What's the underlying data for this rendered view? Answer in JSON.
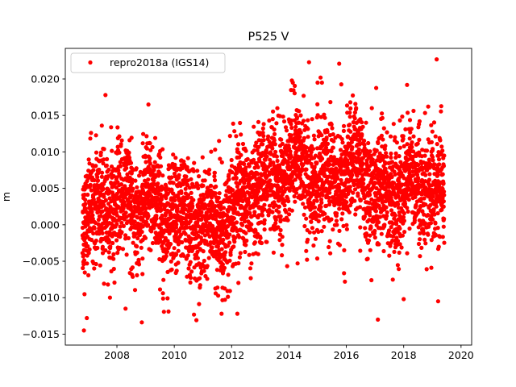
{
  "chart_data": {
    "type": "scatter",
    "title": "P525 V",
    "xlabel": "",
    "ylabel": "m",
    "xlim": [
      2006.2,
      2020.37
    ],
    "ylim": [
      -0.0165,
      0.0242
    ],
    "x_ticks": [
      2008,
      2010,
      2012,
      2014,
      2016,
      2018,
      2020
    ],
    "x_tick_labels": [
      "2008",
      "2010",
      "2012",
      "2014",
      "2016",
      "2018",
      "2020"
    ],
    "y_ticks": [
      -0.015,
      -0.01,
      -0.005,
      0.0,
      0.005,
      0.01,
      0.015,
      0.02
    ],
    "y_tick_labels": [
      "−0.015",
      "−0.010",
      "−0.005",
      "0.000",
      "0.005",
      "0.010",
      "0.015",
      "0.020"
    ],
    "grid": false,
    "legend": {
      "placement": "top-left",
      "entries": [
        "repro2018a (IGS14)"
      ]
    },
    "series": [
      {
        "name": "repro2018a (IGS14)",
        "color": "#ff0000",
        "marker": "dot",
        "x_range": [
          2006.8,
          2019.42
        ],
        "daily_step_years": 0.00274,
        "scatter_std": 0.0038,
        "trend": {
          "x": [
            2006.8,
            2007.5,
            2008.0,
            2009.0,
            2010.0,
            2011.0,
            2011.5,
            2012.0,
            2012.5,
            2013.0,
            2013.5,
            2014.0,
            2014.5,
            2015.0,
            2015.5,
            2016.0,
            2016.5,
            2017.0,
            2017.5,
            2018.0,
            2018.5,
            2019.0,
            2019.42
          ],
          "y": [
            0.0015,
            0.002,
            0.003,
            0.003,
            0.0015,
            0.0,
            -0.001,
            0.002,
            0.003,
            0.005,
            0.006,
            0.008,
            0.0085,
            0.0055,
            0.007,
            0.007,
            0.008,
            0.004,
            0.004,
            0.0055,
            0.006,
            0.005,
            0.004
          ]
        },
        "outliers": [
          {
            "x": 2006.85,
            "y": -0.0145
          },
          {
            "x": 2006.95,
            "y": -0.0128
          },
          {
            "x": 2007.6,
            "y": 0.0178
          },
          {
            "x": 2009.1,
            "y": 0.0165
          },
          {
            "x": 2009.8,
            "y": -0.0119
          },
          {
            "x": 2008.3,
            "y": -0.0115
          },
          {
            "x": 2011.65,
            "y": -0.0122
          },
          {
            "x": 2012.2,
            "y": -0.0122
          },
          {
            "x": 2014.7,
            "y": 0.0223
          },
          {
            "x": 2015.1,
            "y": 0.0202
          },
          {
            "x": 2015.75,
            "y": 0.0221
          },
          {
            "x": 2014.1,
            "y": 0.0198
          },
          {
            "x": 2017.1,
            "y": -0.013
          },
          {
            "x": 2018.0,
            "y": -0.0102
          },
          {
            "x": 2019.15,
            "y": 0.0227
          },
          {
            "x": 2019.2,
            "y": -0.0105
          },
          {
            "x": 2015.95,
            "y": -0.0078
          },
          {
            "x": 2014.3,
            "y": -0.0053
          }
        ]
      }
    ]
  }
}
